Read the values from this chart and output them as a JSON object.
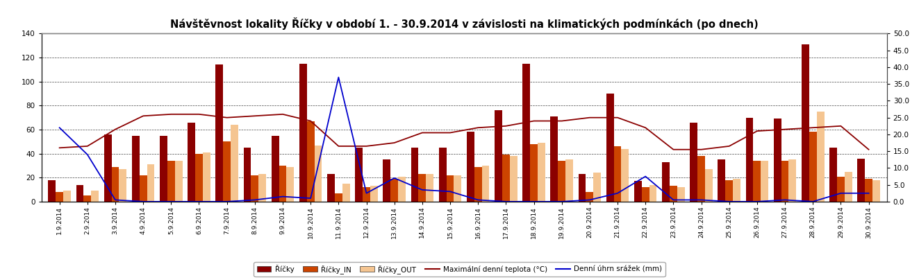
{
  "title": "Návštěvnost lokality Říčky v období 1. - 30.9.2014 v závislosti na klimatických podmínkách (po dnech)",
  "labels": [
    "1.9.2014",
    "2.9.2014",
    "3.9.2014",
    "4.9.2014",
    "5.9.2014",
    "6.9.2014",
    "7.9.2014",
    "8.9.2014",
    "9.9.2014",
    "10.9.2014",
    "11.9.2014",
    "12.9.2014",
    "13.9.2014",
    "14.9.2014",
    "15.9.2014",
    "16.9.2014",
    "17.9.2014",
    "18.9.2014",
    "19.9.2014",
    "20.9.2014",
    "21.9.2014",
    "22.9.2014",
    "23.9.2014",
    "24.9.2014",
    "25.9.2014",
    "26.9.2014",
    "27.9.2014",
    "28.9.2014",
    "29.9.2014",
    "30.9.2014"
  ],
  "ricky": [
    18,
    14,
    56,
    55,
    55,
    66,
    114,
    45,
    55,
    115,
    23,
    45,
    35,
    45,
    45,
    58,
    76,
    115,
    71,
    23,
    90,
    17,
    33,
    66,
    35,
    70,
    69,
    131,
    45,
    36
  ],
  "ricky_in": [
    8,
    5,
    29,
    22,
    34,
    40,
    50,
    22,
    30,
    67,
    7,
    12,
    19,
    23,
    22,
    29,
    39,
    48,
    34,
    8,
    46,
    12,
    13,
    38,
    18,
    34,
    34,
    58,
    21,
    19
  ],
  "ricky_out": [
    9,
    9,
    27,
    31,
    34,
    41,
    64,
    23,
    29,
    47,
    15,
    13,
    21,
    23,
    22,
    30,
    38,
    49,
    35,
    24,
    44,
    14,
    12,
    27,
    19,
    34,
    35,
    75,
    25,
    18
  ],
  "max_temp": [
    16.0,
    16.5,
    21.5,
    25.5,
    26.0,
    26.0,
    25.0,
    25.5,
    26.0,
    24.0,
    16.5,
    16.5,
    17.5,
    20.5,
    20.5,
    22.0,
    22.5,
    24.0,
    24.0,
    25.0,
    25.0,
    22.0,
    15.5,
    15.5,
    16.5,
    21.0,
    21.5,
    22.0,
    22.5,
    15.5
  ],
  "rain": [
    22.0,
    14.0,
    0.5,
    0.0,
    0.0,
    0.0,
    0.0,
    0.5,
    1.5,
    1.0,
    37.0,
    2.5,
    7.0,
    3.5,
    3.0,
    0.5,
    0.0,
    0.0,
    0.0,
    0.5,
    2.5,
    7.5,
    0.5,
    0.5,
    0.0,
    0.0,
    0.5,
    0.0,
    2.5,
    2.5
  ],
  "bar_color_ricky": "#8B0000",
  "bar_color_in": "#CC4400",
  "bar_color_out": "#F5C591",
  "line_color_temp": "#8B0000",
  "line_color_rain": "#0000CD",
  "ylim_left": [
    0,
    140
  ],
  "ylim_right": [
    0,
    50
  ],
  "yticks_left": [
    0,
    20,
    40,
    60,
    80,
    100,
    120,
    140
  ],
  "yticks_right": [
    0.0,
    5.0,
    10.0,
    15.0,
    20.0,
    25.0,
    30.0,
    35.0,
    40.0,
    45.0,
    50.0
  ],
  "background_color": "#FFFFFF",
  "title_fontsize": 10.5,
  "bar_width": 0.27,
  "legend_labels": [
    "Říčky",
    "Říčky_IN",
    "Říčky_OUT",
    "Maximální denní teplota (°C)",
    "Denní úhrn srážek (mm)"
  ]
}
